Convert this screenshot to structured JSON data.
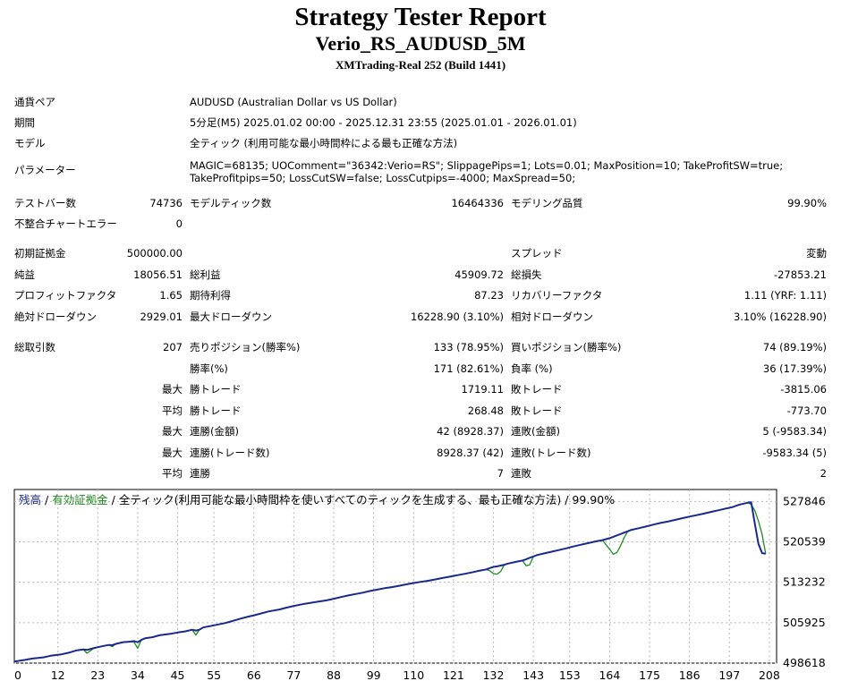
{
  "header": {
    "title": "Strategy Tester Report",
    "subtitle": "Verio_RS_AUDUSD_5M",
    "server": "XMTrading-Real 252 (Build 1441)"
  },
  "info": {
    "pair_label": "通貨ペア",
    "pair_value": "AUDUSD (Australian Dollar vs US Dollar)",
    "period_label": "期間",
    "period_value": "5分足(M5) 2025.01.02 00:00 - 2025.12.31 23:55 (2025.01.01 - 2026.01.01)",
    "model_label": "モデル",
    "model_value": "全ティック (利用可能な最小時間枠による最も正確な方法)",
    "params_label": "パラメーター",
    "params_value": "MAGIC=68135; UOComment=\"36342:Verio=RS\"; SlippagePips=1; Lots=0.01; MaxPosition=10; TakeProfitSW=true; TakeProfitpips=50; LossCutSW=false; LossCutpips=-4000; MaxSpread=50;"
  },
  "stats": {
    "bars_label": "テストバー数",
    "bars_value": "74736",
    "ticks_label": "モデルティック数",
    "ticks_value": "16464336",
    "quality_label": "モデリング品質",
    "quality_value": "99.90%",
    "mismatch_label": "不整合チャートエラー",
    "mismatch_value": "0",
    "deposit_label": "初期証拠金",
    "deposit_value": "500000.00",
    "spread_label": "スプレッド",
    "spread_value": "変動",
    "net_label": "純益",
    "net_value": "18056.51",
    "gross_profit_label": "総利益",
    "gross_profit_value": "45909.72",
    "gross_loss_label": "総損失",
    "gross_loss_value": "-27853.21",
    "pf_label": "プロフィットファクタ",
    "pf_value": "1.65",
    "expected_label": "期待利得",
    "expected_value": "87.23",
    "recovery_label": "リカバリーファクタ",
    "recovery_value": "1.11 (YRF: 1.11)",
    "abs_dd_label": "絶対ドローダウン",
    "abs_dd_value": "2929.01",
    "max_dd_label": "最大ドローダウン",
    "max_dd_value": "16228.90 (3.10%)",
    "rel_dd_label": "相対ドローダウン",
    "rel_dd_value": "3.10% (16228.90)",
    "total_trades_label": "総取引数",
    "total_trades_value": "207",
    "short_label": "売りポジション(勝率%)",
    "short_value": "133 (78.95%)",
    "long_label": "買いポジション(勝率%)",
    "long_value": "74 (89.19%)",
    "winrate_label": "勝率(%)",
    "winrate_value": "171 (82.61%)",
    "lossrate_label": "負率 (%)",
    "lossrate_value": "36 (17.39%)",
    "max_label_1": "最大",
    "max_win_label": "勝トレード",
    "max_win_value": "1719.11",
    "max_loss_label": "敗トレード",
    "max_loss_value": "-3815.06",
    "avg_label_1": "平均",
    "avg_win_label": "勝トレード",
    "avg_win_value": "268.48",
    "avg_loss_label": "敗トレード",
    "avg_loss_value": "-773.70",
    "max_label_2": "最大",
    "cw_amount_label": "連勝(金額)",
    "cw_amount_value": "42 (8928.37)",
    "cl_amount_label": "連敗(金額)",
    "cl_amount_value": "5 (-9583.34)",
    "max_label_3": "最大",
    "cw_trades_label": "連勝(トレード数)",
    "cw_trades_value": "8928.37 (42)",
    "cl_trades_label": "連敗(トレード数)",
    "cl_trades_value": "-9583.34 (5)",
    "avg_label_2": "平均",
    "avg_cw_label": "連勝",
    "avg_cw_value": "7",
    "avg_cl_label": "連敗",
    "avg_cl_value": "2"
  },
  "chart_data": {
    "type": "line",
    "legend": {
      "balance": "残高",
      "sep1": " / ",
      "equity": "有効証拠金",
      "sep2": " / ",
      "rest": "全ティック(利用可能な最小時間枠を使いすべてのティックを生成する、最も正確な方法) / 99.90%"
    },
    "x_ticks": [
      "0",
      "12",
      "23",
      "34",
      "45",
      "55",
      "66",
      "77",
      "88",
      "99",
      "110",
      "121",
      "132",
      "143",
      "153",
      "164",
      "175",
      "186",
      "197",
      "208"
    ],
    "y_ticks": [
      "527846",
      "520539",
      "513232",
      "505925",
      "498618"
    ],
    "ylim": [
      498618,
      530000
    ],
    "xlim": [
      0,
      210
    ],
    "grid": true,
    "colors": {
      "balance": "#1a2a8c",
      "equity": "#1e8c1e"
    },
    "series": [
      {
        "name": "残高",
        "x": [
          0,
          3,
          5,
          8,
          10,
          13,
          15,
          17,
          19,
          20,
          22,
          24,
          26,
          27,
          28,
          30,
          32,
          33,
          34,
          35,
          36,
          38,
          40,
          43,
          45,
          47,
          49,
          50,
          51,
          52,
          55,
          58,
          60,
          62,
          64,
          66,
          68,
          70,
          73,
          75,
          77,
          80,
          83,
          86,
          88,
          90,
          92,
          94,
          96,
          98,
          100,
          102,
          104,
          106,
          108,
          110,
          112,
          114,
          116,
          118,
          120,
          122,
          124,
          126,
          128,
          130,
          131,
          132,
          133,
          134,
          135,
          136,
          138,
          140,
          141,
          142,
          143,
          144,
          146,
          148,
          150,
          152,
          154,
          156,
          158,
          160,
          162,
          164,
          165,
          166,
          167,
          168,
          169,
          170,
          172,
          174,
          176,
          178,
          180,
          182,
          184,
          186,
          188,
          190,
          192,
          194,
          196,
          198,
          199,
          200,
          201,
          202,
          203,
          204,
          205,
          206,
          207
        ],
        "y": [
          498900,
          499200,
          499450,
          499650,
          499950,
          500200,
          500500,
          500900,
          501100,
          501000,
          501350,
          501650,
          501900,
          501850,
          502100,
          502400,
          502500,
          502600,
          502400,
          502800,
          503100,
          503300,
          503650,
          503900,
          504150,
          504350,
          504650,
          504500,
          504650,
          505050,
          505450,
          505850,
          506200,
          506600,
          506950,
          507250,
          507600,
          507950,
          508300,
          508650,
          508950,
          509350,
          509650,
          509950,
          510250,
          510550,
          510850,
          511100,
          511350,
          511650,
          511900,
          512150,
          512350,
          512600,
          512850,
          513100,
          513300,
          513500,
          513750,
          514000,
          514250,
          514500,
          514750,
          515000,
          515300,
          515550,
          515800,
          516000,
          516100,
          516250,
          516400,
          516600,
          516900,
          517150,
          517400,
          517650,
          517900,
          518150,
          518450,
          518750,
          519050,
          519350,
          519700,
          520000,
          520300,
          520600,
          520850,
          521200,
          521450,
          521700,
          521950,
          522200,
          522450,
          522700,
          523000,
          523300,
          523650,
          523950,
          524200,
          524500,
          524800,
          525100,
          525350,
          525650,
          525950,
          526250,
          526550,
          526850,
          527100,
          527300,
          527450,
          527600,
          527700,
          523800,
          520200,
          518500,
          518400
        ]
      },
      {
        "name": "有効証拠金",
        "x": [
          0,
          3,
          5,
          8,
          10,
          13,
          15,
          17,
          19,
          20,
          22,
          24,
          26,
          27,
          28,
          30,
          32,
          33,
          34,
          35,
          36,
          38,
          40,
          43,
          45,
          47,
          49,
          50,
          51,
          52,
          55,
          58,
          60,
          62,
          64,
          66,
          68,
          70,
          73,
          75,
          77,
          80,
          83,
          86,
          88,
          90,
          92,
          94,
          96,
          98,
          100,
          102,
          104,
          106,
          108,
          110,
          112,
          114,
          116,
          118,
          120,
          122,
          124,
          126,
          128,
          130,
          131,
          132,
          133,
          134,
          135,
          136,
          138,
          140,
          141,
          142,
          143,
          144,
          146,
          148,
          150,
          152,
          154,
          156,
          158,
          160,
          162,
          164,
          165,
          166,
          167,
          168,
          169,
          170,
          172,
          174,
          176,
          178,
          180,
          182,
          184,
          186,
          188,
          190,
          192,
          194,
          196,
          198,
          199,
          200,
          201,
          202,
          203,
          204,
          205,
          206,
          207
        ],
        "y": [
          498900,
          499200,
          499450,
          499650,
          499950,
          500200,
          500500,
          500900,
          501100,
          500400,
          501350,
          501650,
          501900,
          501600,
          502100,
          502400,
          502500,
          502400,
          501300,
          502800,
          503100,
          503300,
          503650,
          503900,
          504150,
          504350,
          504650,
          503700,
          504650,
          505050,
          505450,
          505850,
          506200,
          506600,
          506950,
          507250,
          507600,
          507950,
          508300,
          508650,
          508950,
          509350,
          509650,
          509950,
          510250,
          510550,
          510850,
          511100,
          511350,
          511650,
          511900,
          512150,
          512350,
          512600,
          512850,
          513100,
          513300,
          513500,
          513750,
          514000,
          514250,
          514500,
          514750,
          515000,
          515300,
          515550,
          515300,
          514800,
          514700,
          515200,
          516400,
          516600,
          516900,
          517150,
          516200,
          516400,
          517900,
          518150,
          518450,
          518750,
          519050,
          519350,
          519700,
          520000,
          520300,
          520600,
          520850,
          519200,
          518300,
          518600,
          519800,
          521300,
          522450,
          522700,
          523000,
          523300,
          523650,
          523950,
          524200,
          524500,
          524800,
          525100,
          525350,
          525650,
          525950,
          526250,
          526550,
          526850,
          527100,
          527300,
          527450,
          527600,
          527300,
          526200,
          524300,
          521900,
          518400
        ]
      }
    ]
  }
}
